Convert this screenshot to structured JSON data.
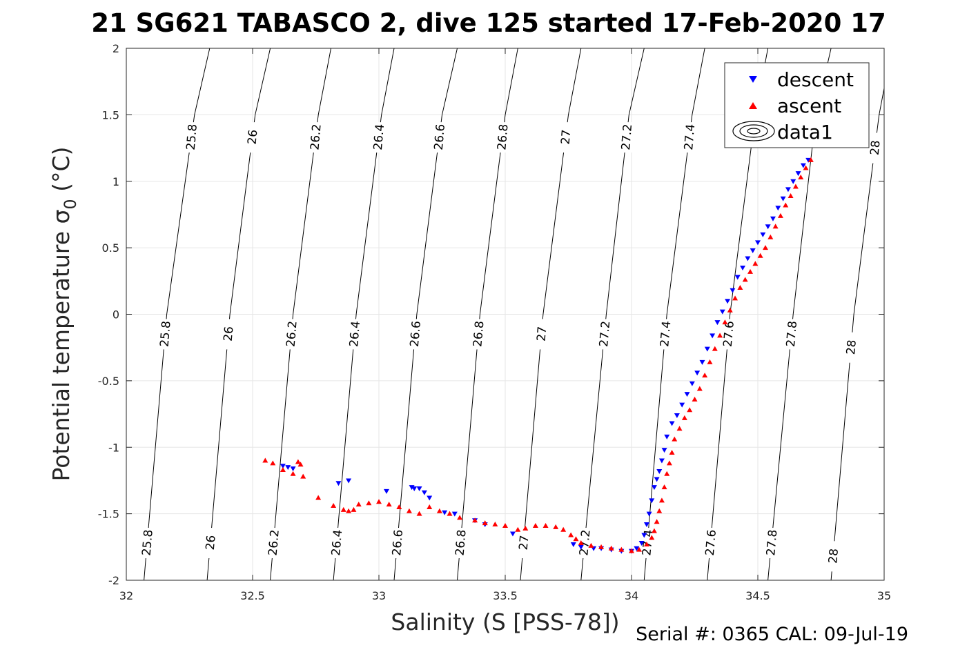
{
  "title": "21 SG621 TABASCO 2, dive 125 started 17-Feb-2020 17",
  "footer": "Serial #: 0365  CAL: 09-Jul-19",
  "chart_data": {
    "type": "scatter",
    "xlabel": "Salinity (S [PSS-78])",
    "ylabel": "Potential temperature σ",
    "ylabel_sub": "0",
    "ylabel_unit": " (°C)",
    "xlim": [
      32,
      35
    ],
    "ylim": [
      -2,
      2
    ],
    "xticks": [
      32,
      32.5,
      33,
      33.5,
      34,
      34.5,
      35
    ],
    "xtick_labels": [
      "32",
      "32.5",
      "33",
      "33.5",
      "34",
      "34.5",
      "35"
    ],
    "yticks": [
      -2,
      -1.5,
      -1,
      -0.5,
      0,
      0.5,
      1,
      1.5,
      2
    ],
    "ytick_labels": [
      "-2",
      "-1.5",
      "-1",
      "-0.5",
      "0",
      "0.5",
      "1",
      "1.5",
      "2"
    ],
    "grid": true,
    "legend_position": "top-right",
    "density_contours": [
      {
        "level": "25.8",
        "points": [
          [
            32.07,
            -2
          ],
          [
            32.16,
            0
          ],
          [
            32.27,
            1.5
          ],
          [
            32.33,
            2
          ]
        ]
      },
      {
        "level": "26",
        "points": [
          [
            32.32,
            -2
          ],
          [
            32.41,
            0
          ],
          [
            32.51,
            1.5
          ],
          [
            32.57,
            2
          ]
        ]
      },
      {
        "level": "26.2",
        "points": [
          [
            32.57,
            -2
          ],
          [
            32.66,
            0
          ],
          [
            32.76,
            1.5
          ],
          [
            32.81,
            2
          ]
        ]
      },
      {
        "level": "26.4",
        "points": [
          [
            32.82,
            -2
          ],
          [
            32.91,
            0
          ],
          [
            33.01,
            1.5
          ],
          [
            33.06,
            2
          ]
        ]
      },
      {
        "level": "26.6",
        "points": [
          [
            33.06,
            -2
          ],
          [
            33.15,
            0
          ],
          [
            33.25,
            1.5
          ],
          [
            33.31,
            2
          ]
        ]
      },
      {
        "level": "26.8",
        "points": [
          [
            33.31,
            -2
          ],
          [
            33.4,
            0
          ],
          [
            33.5,
            1.5
          ],
          [
            33.55,
            2
          ]
        ]
      },
      {
        "level": "27",
        "points": [
          [
            33.56,
            -2
          ],
          [
            33.65,
            0
          ],
          [
            33.75,
            1.5
          ],
          [
            33.8,
            2
          ]
        ]
      },
      {
        "level": "27.2",
        "points": [
          [
            33.8,
            -2
          ],
          [
            33.9,
            0
          ],
          [
            33.99,
            1.5
          ],
          [
            34.05,
            2
          ]
        ]
      },
      {
        "level": "27.4",
        "points": [
          [
            34.05,
            -2
          ],
          [
            34.14,
            0
          ],
          [
            34.24,
            1.5
          ],
          [
            34.29,
            2
          ]
        ]
      },
      {
        "level": "27.6",
        "points": [
          [
            34.3,
            -2
          ],
          [
            34.39,
            0
          ],
          [
            34.49,
            1.5
          ],
          [
            34.54,
            2
          ]
        ]
      },
      {
        "level": "27.8",
        "points": [
          [
            34.54,
            -2
          ],
          [
            34.64,
            0
          ],
          [
            34.73,
            1.5
          ],
          [
            34.79,
            2
          ]
        ]
      },
      {
        "level": "28",
        "points": [
          [
            34.79,
            -2
          ],
          [
            34.88,
            0
          ],
          [
            34.98,
            1.5
          ],
          [
            35.03,
            2
          ]
        ]
      }
    ],
    "contour_label_rows": [
      1.33,
      -0.15,
      -1.72
    ],
    "contour_label_row_levels": [
      [
        "25.8",
        "26",
        "26.2",
        "26.4",
        "26.6",
        "26.8",
        "27",
        "27.2",
        "27.4",
        "28"
      ],
      [
        "25.8",
        "26",
        "26.2",
        "26.4",
        "26.6",
        "26.8",
        "27",
        "27.2",
        "27.4",
        "27.6",
        "27.8",
        "28"
      ],
      [
        "25.8",
        "26",
        "26.2",
        "26.4",
        "26.6",
        "26.8",
        "27",
        "27.2",
        "27.4",
        "27.6",
        "27.8",
        "28"
      ]
    ],
    "series": [
      {
        "name": "descent",
        "color": "#0000ff",
        "marker": "triangle-down",
        "points": [
          [
            34.7,
            1.16
          ],
          [
            34.68,
            1.12
          ],
          [
            34.66,
            1.06
          ],
          [
            34.64,
            1.0
          ],
          [
            34.62,
            0.94
          ],
          [
            34.6,
            0.87
          ],
          [
            34.58,
            0.8
          ],
          [
            34.56,
            0.72
          ],
          [
            34.54,
            0.66
          ],
          [
            34.52,
            0.6
          ],
          [
            34.5,
            0.54
          ],
          [
            34.48,
            0.48
          ],
          [
            34.46,
            0.42
          ],
          [
            34.44,
            0.35
          ],
          [
            34.42,
            0.28
          ],
          [
            34.4,
            0.18
          ],
          [
            34.38,
            0.1
          ],
          [
            34.36,
            0.02
          ],
          [
            34.34,
            -0.06
          ],
          [
            34.32,
            -0.16
          ],
          [
            34.3,
            -0.26
          ],
          [
            34.28,
            -0.36
          ],
          [
            34.26,
            -0.44
          ],
          [
            34.24,
            -0.52
          ],
          [
            34.22,
            -0.6
          ],
          [
            34.2,
            -0.68
          ],
          [
            34.18,
            -0.76
          ],
          [
            34.16,
            -0.82
          ],
          [
            34.14,
            -0.92
          ],
          [
            34.13,
            -1.02
          ],
          [
            34.12,
            -1.1
          ],
          [
            34.11,
            -1.18
          ],
          [
            34.1,
            -1.24
          ],
          [
            34.09,
            -1.3
          ],
          [
            34.08,
            -1.4
          ],
          [
            34.07,
            -1.5
          ],
          [
            34.06,
            -1.58
          ],
          [
            34.05,
            -1.66
          ],
          [
            34.04,
            -1.72
          ],
          [
            34.02,
            -1.76
          ],
          [
            34.0,
            -1.78
          ],
          [
            33.96,
            -1.78
          ],
          [
            33.92,
            -1.77
          ],
          [
            33.88,
            -1.76
          ],
          [
            33.85,
            -1.76
          ],
          [
            33.8,
            -1.75
          ],
          [
            33.77,
            -1.73
          ],
          [
            33.53,
            -1.65
          ],
          [
            33.42,
            -1.58
          ],
          [
            33.38,
            -1.55
          ],
          [
            33.3,
            -1.5
          ],
          [
            33.26,
            -1.49
          ],
          [
            33.2,
            -1.38
          ],
          [
            33.18,
            -1.34
          ],
          [
            33.16,
            -1.31
          ],
          [
            33.14,
            -1.31
          ],
          [
            33.13,
            -1.3
          ],
          [
            33.03,
            -1.33
          ],
          [
            32.88,
            -1.25
          ],
          [
            32.84,
            -1.27
          ],
          [
            32.66,
            -1.16
          ],
          [
            32.64,
            -1.15
          ],
          [
            32.62,
            -1.14
          ]
        ]
      },
      {
        "name": "ascent",
        "color": "#ff0000",
        "marker": "triangle-up",
        "points": [
          [
            34.71,
            1.16
          ],
          [
            34.69,
            1.1
          ],
          [
            34.67,
            1.03
          ],
          [
            34.65,
            0.96
          ],
          [
            34.63,
            0.89
          ],
          [
            34.61,
            0.82
          ],
          [
            34.59,
            0.74
          ],
          [
            34.57,
            0.66
          ],
          [
            34.55,
            0.58
          ],
          [
            34.53,
            0.5
          ],
          [
            34.51,
            0.44
          ],
          [
            34.49,
            0.38
          ],
          [
            34.47,
            0.32
          ],
          [
            34.45,
            0.26
          ],
          [
            34.43,
            0.2
          ],
          [
            34.41,
            0.12
          ],
          [
            34.39,
            0.03
          ],
          [
            34.37,
            -0.06
          ],
          [
            34.35,
            -0.16
          ],
          [
            34.33,
            -0.26
          ],
          [
            34.31,
            -0.36
          ],
          [
            34.29,
            -0.46
          ],
          [
            34.27,
            -0.56
          ],
          [
            34.25,
            -0.64
          ],
          [
            34.23,
            -0.72
          ],
          [
            34.21,
            -0.78
          ],
          [
            34.19,
            -0.86
          ],
          [
            34.17,
            -0.94
          ],
          [
            34.16,
            -1.04
          ],
          [
            34.15,
            -1.12
          ],
          [
            34.14,
            -1.2
          ],
          [
            34.13,
            -1.3
          ],
          [
            34.12,
            -1.4
          ],
          [
            34.11,
            -1.48
          ],
          [
            34.1,
            -1.56
          ],
          [
            34.09,
            -1.63
          ],
          [
            34.08,
            -1.68
          ],
          [
            34.06,
            -1.73
          ],
          [
            34.03,
            -1.77
          ],
          [
            34.0,
            -1.78
          ],
          [
            33.96,
            -1.77
          ],
          [
            33.92,
            -1.76
          ],
          [
            33.88,
            -1.75
          ],
          [
            33.84,
            -1.74
          ],
          [
            33.8,
            -1.72
          ],
          [
            33.78,
            -1.69
          ],
          [
            33.76,
            -1.66
          ],
          [
            33.73,
            -1.62
          ],
          [
            33.7,
            -1.6
          ],
          [
            33.66,
            -1.59
          ],
          [
            33.62,
            -1.59
          ],
          [
            33.58,
            -1.61
          ],
          [
            33.55,
            -1.62
          ],
          [
            33.5,
            -1.59
          ],
          [
            33.46,
            -1.58
          ],
          [
            33.42,
            -1.57
          ],
          [
            33.38,
            -1.55
          ],
          [
            33.32,
            -1.53
          ],
          [
            33.28,
            -1.5
          ],
          [
            33.24,
            -1.48
          ],
          [
            33.2,
            -1.45
          ],
          [
            33.16,
            -1.5
          ],
          [
            33.12,
            -1.48
          ],
          [
            33.08,
            -1.45
          ],
          [
            33.04,
            -1.43
          ],
          [
            33.0,
            -1.41
          ],
          [
            32.96,
            -1.42
          ],
          [
            32.92,
            -1.43
          ],
          [
            32.9,
            -1.47
          ],
          [
            32.88,
            -1.48
          ],
          [
            32.86,
            -1.47
          ],
          [
            32.82,
            -1.44
          ],
          [
            32.76,
            -1.38
          ],
          [
            32.7,
            -1.22
          ],
          [
            32.69,
            -1.13
          ],
          [
            32.68,
            -1.11
          ],
          [
            32.66,
            -1.2
          ],
          [
            32.62,
            -1.17
          ],
          [
            32.58,
            -1.12
          ],
          [
            32.55,
            -1.1
          ]
        ]
      }
    ],
    "legend": [
      "descent",
      "ascent",
      "data1"
    ]
  }
}
